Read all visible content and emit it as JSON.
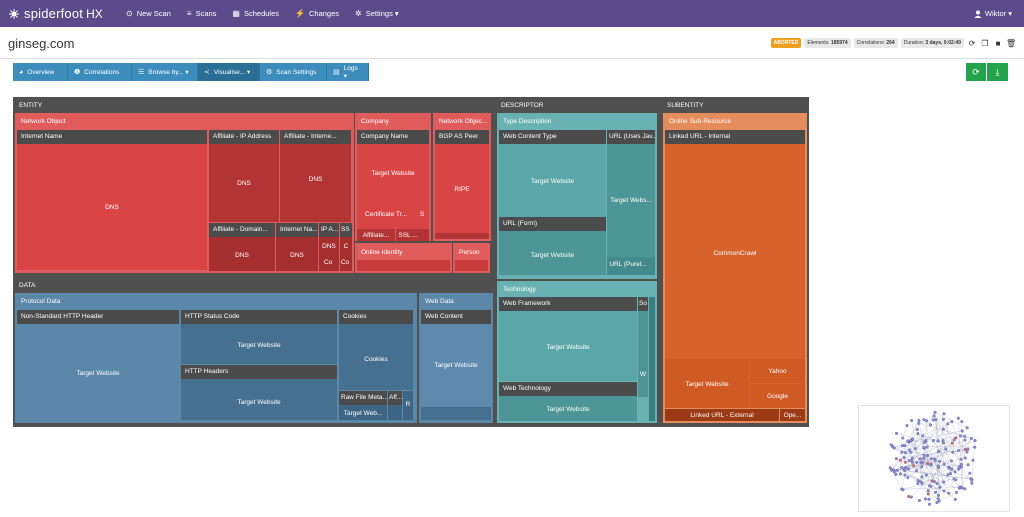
{
  "app": {
    "name": "spiderfoot",
    "suffix": "HX"
  },
  "nav": [
    {
      "icon": "⊙",
      "label": "New Scan"
    },
    {
      "icon": "≡",
      "label": "Scans"
    },
    {
      "icon": "▦",
      "label": "Schedules"
    },
    {
      "icon": "⚡",
      "label": "Changes"
    },
    {
      "icon": "✲",
      "label": "Settings ▾"
    }
  ],
  "user": {
    "name": "Wiktor ▾"
  },
  "page": {
    "title": "ginseg.com"
  },
  "status": {
    "state": "ABORTED",
    "elements_label": "Elements:",
    "elements_value": "185974",
    "correlations_label": "Correlations:",
    "correlations_value": "264",
    "duration_label": "Duration:",
    "duration_value": "3 days, 0:02:40"
  },
  "toolbar": [
    {
      "icon": "◕",
      "label": "Overview"
    },
    {
      "icon": "❶",
      "label": "Correlations"
    },
    {
      "icon": "☰",
      "label": "Browse by... ▾"
    },
    {
      "icon": "≺",
      "label": "Visualise... ▾"
    },
    {
      "icon": "⚙",
      "label": "Scan Settings"
    },
    {
      "icon": "▤",
      "label": "Logs ▾"
    }
  ],
  "actions": {
    "refresh": "⟳",
    "download": "⤓"
  },
  "treemap": {
    "entity": "ENTITY",
    "network_object": "Network Object",
    "internet_name": "Internet Name",
    "dns": "DNS",
    "affiliate_ip": "Affiliate - IP Address",
    "affiliate_internet": "Affiliate - Interne...",
    "affiliate_domain": "Affiliate - Domain...",
    "internet_na": "Internet Na...",
    "ip_a": "IP A...",
    "ss": "SS",
    "c": "C",
    "co": "Co",
    "company": "Company",
    "company_name": "Company Name",
    "target_website": "Target Website",
    "certificate_tr": "Certificate Tr...",
    "s": "S",
    "affiliate_short": "Affiliate...",
    "ssl": "SSL ...",
    "online_identity": "Online Identity",
    "person": "Person",
    "network_obj_short": "Network Objec...",
    "bgp_as_peer": "BGP AS Peer",
    "ripe": "RIPE",
    "data": "DATA",
    "protocol_data": "Protocol Data",
    "non_standard_http": "Non-Standard HTTP Header",
    "http_status_code": "HTTP Status Code",
    "cookies": "Cookies",
    "http_headers": "HTTP Headers",
    "raw_file_meta": "Raw File Meta...",
    "aff": "Aff...",
    "target_web_short": "Target Web...",
    "r": "R",
    "web_data": "Web Data",
    "web_content": "Web Content",
    "descriptor": "DESCRIPTOR",
    "type_description": "Type Description",
    "web_content_type": "Web Content Type",
    "url_uses_jav": "URL (Uses Jav...",
    "target_webs_short": "Target Webs...",
    "url_form": "URL (Form)",
    "url_purel": "URL (Purel...",
    "technology": "Technology",
    "web_framework": "Web Framework",
    "so": "So",
    "w": "W",
    "web_technology": "Web Technology",
    "subentity": "SUBENTITY",
    "online_sub_resource": "Online Sub-Resource",
    "linked_url_internal": "Linked URL - Internal",
    "commoncrawl": "CommonCrawl",
    "yahoo": "Yahoo",
    "google": "Google",
    "linked_url_external": "Linked URL - External",
    "ope": "Ope..."
  }
}
